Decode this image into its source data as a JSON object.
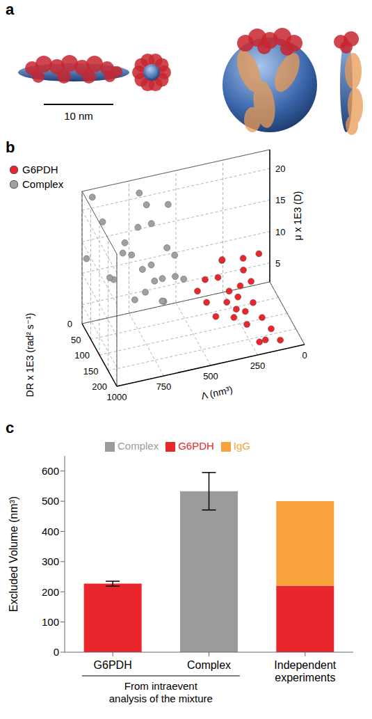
{
  "panel_labels": [
    "a",
    "b",
    "c"
  ],
  "panel_a": {
    "scale_bar_label": "10 nm"
  },
  "chart_data": [
    {
      "type": "scatter3d",
      "x_label": "Λ (nm³)",
      "y_label": "DR x 1E3 (rad² s⁻¹)",
      "z_label": "μ x 1E3 (D)",
      "xlim": [
        0,
        1000
      ],
      "xticks": [
        0,
        250,
        500,
        750,
        1000
      ],
      "ylim": [
        0,
        200
      ],
      "yticks": [
        0,
        50,
        100,
        150,
        200
      ],
      "zlim": [
        2,
        23
      ],
      "zticks": [
        5,
        10,
        15,
        20
      ],
      "grid": true,
      "legend": "upper left",
      "series": [
        {
          "name": "G6PDH",
          "color": "#e8262c",
          "marker": "circle",
          "x": [
            200,
            250,
            300,
            180,
            350,
            220,
            280,
            150,
            320,
            260,
            400,
            230,
            190,
            340,
            270,
            420,
            300,
            210,
            160,
            380,
            240,
            120,
            450,
            290,
            330
          ],
          "y": [
            120,
            100,
            90,
            150,
            80,
            130,
            110,
            170,
            70,
            140,
            60,
            95,
            180,
            120,
            160,
            90,
            50,
            75,
            110,
            100,
            200,
            190,
            70,
            130,
            150
          ],
          "z": [
            6,
            8,
            7,
            5,
            9,
            10,
            5,
            4,
            11,
            6,
            8,
            12,
            3,
            7,
            5,
            6,
            10,
            9,
            13,
            4,
            4,
            3,
            7,
            8,
            6
          ]
        },
        {
          "name": "Complex",
          "color": "#a0a0a0",
          "marker": "circle",
          "x": [
            600,
            650,
            700,
            550,
            750,
            800,
            620,
            900,
            680,
            720,
            580,
            850,
            950,
            500,
            640,
            770,
            820,
            560,
            700,
            880,
            610,
            730,
            990,
            530,
            660
          ],
          "y": [
            30,
            20,
            40,
            50,
            15,
            30,
            60,
            10,
            25,
            45,
            35,
            20,
            5,
            45,
            10,
            55,
            40,
            20,
            5,
            30,
            40,
            30,
            15,
            25,
            50
          ],
          "z": [
            8,
            10,
            7,
            9,
            12,
            15,
            6,
            18,
            20,
            11,
            13,
            9,
            22,
            8,
            16,
            7,
            14,
            19,
            21,
            10,
            5,
            17,
            13,
            11,
            9
          ]
        }
      ]
    },
    {
      "type": "bar",
      "stacked": true,
      "y_label": "Excluded Volume (nm³)",
      "categories": [
        "G6PDH",
        "Complex",
        "Independent experiments"
      ],
      "group_label": "From intraevent analysis of the mixture",
      "group_categories": [
        "G6PDH",
        "Complex"
      ],
      "ylim": [
        0,
        650
      ],
      "yticks": [
        0,
        100,
        200,
        300,
        400,
        500,
        600
      ],
      "legend": "top",
      "series": [
        {
          "name": "G6PDH",
          "color": "#e8262c",
          "values": [
            227,
            null,
            220
          ],
          "errors": [
            8,
            null,
            null
          ]
        },
        {
          "name": "Complex",
          "color": "#9b9b9b",
          "values": [
            null,
            533,
            null
          ],
          "errors": [
            null,
            62,
            null
          ]
        },
        {
          "name": "IgG",
          "color": "#f7a23b",
          "values": [
            null,
            null,
            280
          ]
        }
      ]
    }
  ]
}
